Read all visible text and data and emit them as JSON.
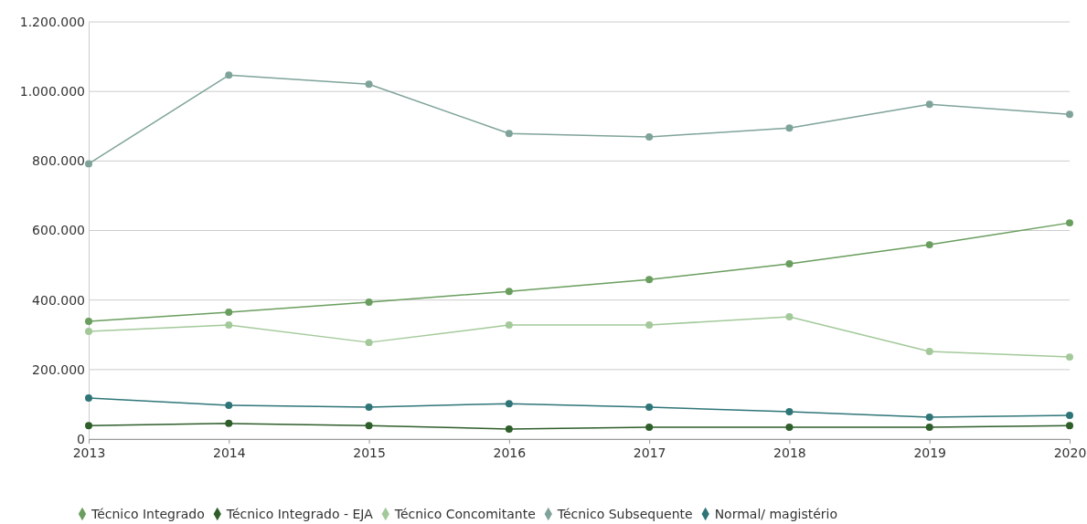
{
  "chart_data": {
    "type": "line",
    "categories": [
      "2013",
      "2014",
      "2015",
      "2016",
      "2017",
      "2018",
      "2019",
      "2020"
    ],
    "series": [
      {
        "name": "Técnico Integrado",
        "color": "#6a9e5e",
        "values": [
          339000,
          365000,
          394000,
          425000,
          459000,
          504000,
          559000,
          622000
        ]
      },
      {
        "name": "Técnico Integrado - EJA",
        "color": "#2e5e2a",
        "values": [
          39000,
          45000,
          39000,
          29000,
          34000,
          34000,
          34000,
          39000
        ]
      },
      {
        "name": "Técnico Concomitante",
        "color": "#a3c99a",
        "values": [
          310000,
          328000,
          278000,
          328000,
          328000,
          352000,
          252000,
          236000
        ]
      },
      {
        "name": "Técnico Subsequente",
        "color": "#7fa39a",
        "values": [
          792000,
          1047000,
          1021000,
          879000,
          869000,
          895000,
          963000,
          934000
        ]
      },
      {
        "name": "Normal/ magistério",
        "color": "#2f7578",
        "values": [
          118000,
          97000,
          92000,
          102000,
          92000,
          79000,
          63000,
          68000
        ]
      }
    ],
    "ylim": [
      0,
      1200000
    ],
    "yticks": [
      0,
      {
        "value": 200000,
        "label": "200.000"
      },
      {
        "value": 400000,
        "label": "400.000"
      },
      {
        "value": 600000,
        "label": "600.000"
      },
      {
        "value": 800000,
        "label": "800.000"
      },
      {
        "value": 1000000,
        "label": "1.000.000"
      },
      {
        "value": 1200000,
        "label": "1.200.000"
      }
    ],
    "grid": "y",
    "legend": "bottom",
    "marker": "circle",
    "line_style": "solid"
  }
}
